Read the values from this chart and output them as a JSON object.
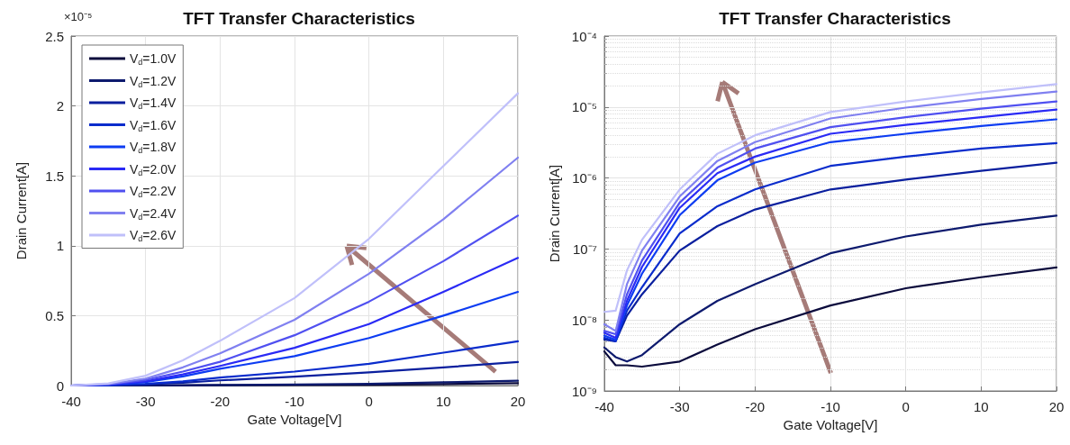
{
  "chart_data": [
    {
      "type": "line",
      "title": "TFT Transfer Characteristics",
      "xlabel": "Gate Voltage[V]",
      "ylabel": "Drain Current[A]",
      "annotations": [
        "×10⁻⁵"
      ],
      "x": [
        -40,
        -35,
        -30,
        -25,
        -20,
        -10,
        0,
        10,
        20
      ],
      "xlim": [
        -40,
        20
      ],
      "xticks": [
        -40,
        -30,
        -20,
        -10,
        0,
        10,
        20
      ],
      "ylim": [
        0,
        2.5
      ],
      "yticks": [
        0,
        0.5,
        1,
        1.5,
        2,
        2.5
      ],
      "grid": true,
      "legend": "top left",
      "line_style": "solid",
      "marker": "none",
      "series": [
        {
          "name": "V$_{d}$=1.0V",
          "color": "#0a0a3c",
          "values": [
            0,
            0,
            0,
            0.001,
            0.002,
            0.004,
            0.006,
            0.011,
            0.017
          ]
        },
        {
          "name": "V$_{d}$=1.2V",
          "color": "#0d1a6e",
          "values": [
            0,
            0,
            0.001,
            0.002,
            0.004,
            0.007,
            0.012,
            0.023,
            0.035
          ]
        },
        {
          "name": "V$_{d}$=1.4V",
          "color": "#0a1f9e",
          "values": [
            0,
            0.002,
            0.008,
            0.02,
            0.037,
            0.063,
            0.094,
            0.13,
            0.168
          ]
        },
        {
          "name": "V$_{d}$=1.6V",
          "color": "#0a2ccc",
          "values": [
            0,
            0.003,
            0.012,
            0.03,
            0.057,
            0.1,
            0.156,
            0.235,
            0.317
          ]
        },
        {
          "name": "V$_{d}$=1.8V",
          "color": "#0d3cf2",
          "values": [
            0,
            0.006,
            0.025,
            0.065,
            0.12,
            0.21,
            0.34,
            0.5,
            0.67
          ]
        },
        {
          "name": "V$_{d}$=2.0V",
          "color": "#2a2af5",
          "values": [
            0,
            0.007,
            0.03,
            0.08,
            0.14,
            0.27,
            0.44,
            0.67,
            0.913
          ]
        },
        {
          "name": "V$_{d}$=2.2V",
          "color": "#5050f0",
          "values": [
            0,
            0.009,
            0.04,
            0.1,
            0.17,
            0.36,
            0.6,
            0.89,
            1.215
          ]
        },
        {
          "name": "V$_{d}$=2.4V",
          "color": "#8080f0",
          "values": [
            0,
            0.011,
            0.05,
            0.13,
            0.23,
            0.47,
            0.8,
            1.19,
            1.63
          ]
        },
        {
          "name": "V$_{d}$=2.6V",
          "color": "#c0c0fa",
          "values": [
            0,
            0.015,
            0.07,
            0.18,
            0.32,
            0.626,
            1.05,
            1.57,
            2.09
          ]
        }
      ]
    },
    {
      "type": "line",
      "title": "TFT Transfer Characteristics",
      "xlabel": "Gate Voltage[V]",
      "ylabel": "Drain Current[A]",
      "x": [
        -40,
        -38.5,
        -37,
        -35,
        -30,
        -25,
        -20,
        -10,
        0,
        10,
        20
      ],
      "xlim": [
        -40,
        20
      ],
      "xticks": [
        -40,
        -30,
        -20,
        -10,
        0,
        10,
        20
      ],
      "log": "y",
      "ylim": [
        1e-09,
        0.0001
      ],
      "yticks": [
        {
          "value": 1e-09,
          "label": "10⁻⁹"
        },
        {
          "value": 1e-08,
          "label": "10⁻⁸"
        },
        {
          "value": 1e-07,
          "label": "10⁻⁷"
        },
        {
          "value": 1e-06,
          "label": "10⁻⁶"
        },
        {
          "value": 1e-05,
          "label": "10⁻⁵"
        },
        {
          "value": 0.0001,
          "label": "10⁻⁴"
        }
      ],
      "grid": true,
      "line_style": "solid",
      "marker": "none",
      "series": [
        {
          "color": "#0a0a3c",
          "values": [
            3.6e-09,
            2.3e-09,
            2.3e-09,
            2.2e-09,
            2.6e-09,
            4.5e-09,
            7.4e-09,
            1.6e-08,
            2.8e-08,
            4e-08,
            5.5e-08
          ]
        },
        {
          "color": "#0d1a6e",
          "values": [
            4.1e-09,
            3e-09,
            2.6e-09,
            3.2e-09,
            8.7e-09,
            1.86e-08,
            3.2e-08,
            8.7e-08,
            1.5e-07,
            2.2e-07,
            2.95e-07
          ]
        },
        {
          "color": "#0a1f9e",
          "values": [
            5.3e-09,
            5e-09,
            1.15e-08,
            2.3e-08,
            9.5e-08,
            2.1e-07,
            3.6e-07,
            6.9e-07,
            9.5e-07,
            1.26e-06,
            1.64e-06
          ]
        },
        {
          "color": "#0a2ccc",
          "values": [
            5.6e-09,
            5e-09,
            1.35e-08,
            2.9e-08,
            1.66e-07,
            4e-07,
            6.9e-07,
            1.48e-06,
            2e-06,
            2.6e-06,
            3.1e-06
          ]
        },
        {
          "color": "#0d3cf2",
          "values": [
            6e-09,
            5.3e-09,
            1.6e-08,
            4.5e-08,
            3e-07,
            9.3e-07,
            1.65e-06,
            3.2e-06,
            4.2e-06,
            5.4e-06,
            6.7e-06
          ]
        },
        {
          "color": "#2a2af5",
          "values": [
            6.6e-09,
            5.6e-09,
            1.86e-08,
            5.6e-08,
            3.8e-07,
            1.17e-06,
            2e-06,
            4.2e-06,
            5.6e-06,
            7.2e-06,
            9.2e-06
          ]
        },
        {
          "color": "#5050f0",
          "values": [
            7e-09,
            6.3e-09,
            2.3e-08,
            6.9e-08,
            4.5e-07,
            1.4e-06,
            2.6e-06,
            5.2e-06,
            7.2e-06,
            9.5e-06,
            1.2e-05
          ]
        },
        {
          "color": "#8080f0",
          "values": [
            8.7e-09,
            7e-09,
            3.2e-08,
            9.5e-08,
            5.5e-07,
            1.74e-06,
            3.2e-06,
            6.9e-06,
            9.8e-06,
            1.3e-05,
            1.65e-05
          ]
        },
        {
          "color": "#c0c0fa",
          "values": [
            1.3e-08,
            1.35e-08,
            5e-08,
            1.35e-07,
            6.9e-07,
            2.2e-06,
            4e-06,
            8.5e-06,
            1.2e-05,
            1.6e-05,
            2.1e-05
          ]
        }
      ]
    }
  ]
}
